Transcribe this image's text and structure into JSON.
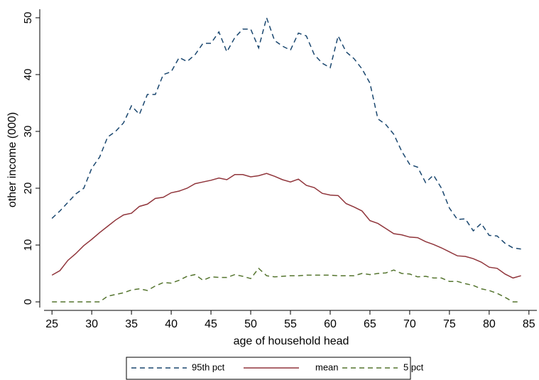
{
  "chart_data": {
    "type": "line",
    "x_label": "age of household head",
    "y_label": "other income (000)",
    "x": [
      25,
      26,
      27,
      28,
      29,
      30,
      31,
      32,
      33,
      34,
      35,
      36,
      37,
      38,
      39,
      40,
      41,
      42,
      43,
      44,
      45,
      46,
      47,
      48,
      49,
      50,
      51,
      52,
      53,
      54,
      55,
      56,
      57,
      58,
      59,
      60,
      61,
      62,
      63,
      64,
      65,
      66,
      67,
      68,
      69,
      70,
      71,
      72,
      73,
      74,
      75,
      76,
      77,
      78,
      79,
      80,
      81,
      82,
      83,
      84
    ],
    "series": [
      {
        "name": "95th pct",
        "color": "#1a476f",
        "dash": "dashed",
        "values": [
          14.7,
          16,
          17.5,
          19,
          20,
          23.5,
          25.5,
          29,
          30,
          31.5,
          34.5,
          33,
          36.5,
          36.5,
          40,
          40.5,
          43,
          42.3,
          43.5,
          45.5,
          45.5,
          47.5,
          44,
          46.5,
          48,
          48,
          44.7,
          50,
          46,
          45,
          44.3,
          47.3,
          46.8,
          43.5,
          42,
          41.2,
          46.8,
          44,
          42.8,
          41,
          38.5,
          32.2,
          31.2,
          29.5,
          26.5,
          24.2,
          23.7,
          21,
          22.3,
          20,
          16.5,
          14.5,
          14.6,
          12.5,
          13.8,
          11.7,
          11.6,
          10.3,
          9.5,
          9.3
        ]
      },
      {
        "name": "mean",
        "color": "#90353b",
        "dash": "solid",
        "values": [
          4.7,
          5.5,
          7.3,
          8.5,
          9.9,
          11,
          12.2,
          13.3,
          14.4,
          15.3,
          15.6,
          16.8,
          17.2,
          18.2,
          18.4,
          19.2,
          19.5,
          20,
          20.8,
          21.1,
          21.4,
          21.8,
          21.5,
          22.4,
          22.4,
          22,
          22.2,
          22.6,
          22.1,
          21.5,
          21.1,
          21.6,
          20.5,
          20.1,
          19.1,
          18.8,
          18.7,
          17.3,
          16.7,
          16,
          14.3,
          13.8,
          12.9,
          12,
          11.8,
          11.4,
          11.3,
          10.6,
          10.1,
          9.5,
          8.8,
          8.1,
          8,
          7.6,
          7,
          6.1,
          5.9,
          4.9,
          4.2,
          4.6
        ]
      },
      {
        "name": "5 pct",
        "color": "#55752f",
        "dash": "dashed",
        "values": [
          0,
          0,
          0,
          0,
          0,
          0,
          0,
          1,
          1.3,
          1.6,
          2.1,
          2.3,
          2,
          2.8,
          3.4,
          3.3,
          3.8,
          4.5,
          4.8,
          3.8,
          4.4,
          4.3,
          4.3,
          4.8,
          4.5,
          4.1,
          5.9,
          4.6,
          4.4,
          4.5,
          4.6,
          4.6,
          4.7,
          4.7,
          4.7,
          4.7,
          4.6,
          4.6,
          4.6,
          5,
          4.8,
          5,
          5.1,
          5.6,
          5,
          4.9,
          4.4,
          4.5,
          4.2,
          4.2,
          3.6,
          3.6,
          3.2,
          2.9,
          2.3,
          2,
          1.5,
          0.8,
          0,
          0
        ]
      }
    ],
    "xlim": [
      24,
      86
    ],
    "xticks": [
      25,
      30,
      35,
      40,
      45,
      50,
      55,
      60,
      65,
      70,
      75,
      80,
      85
    ],
    "ylim": [
      -1,
      51.5
    ],
    "yticks": [
      0,
      10,
      20,
      30,
      40,
      50
    ],
    "legend": "bottom"
  }
}
